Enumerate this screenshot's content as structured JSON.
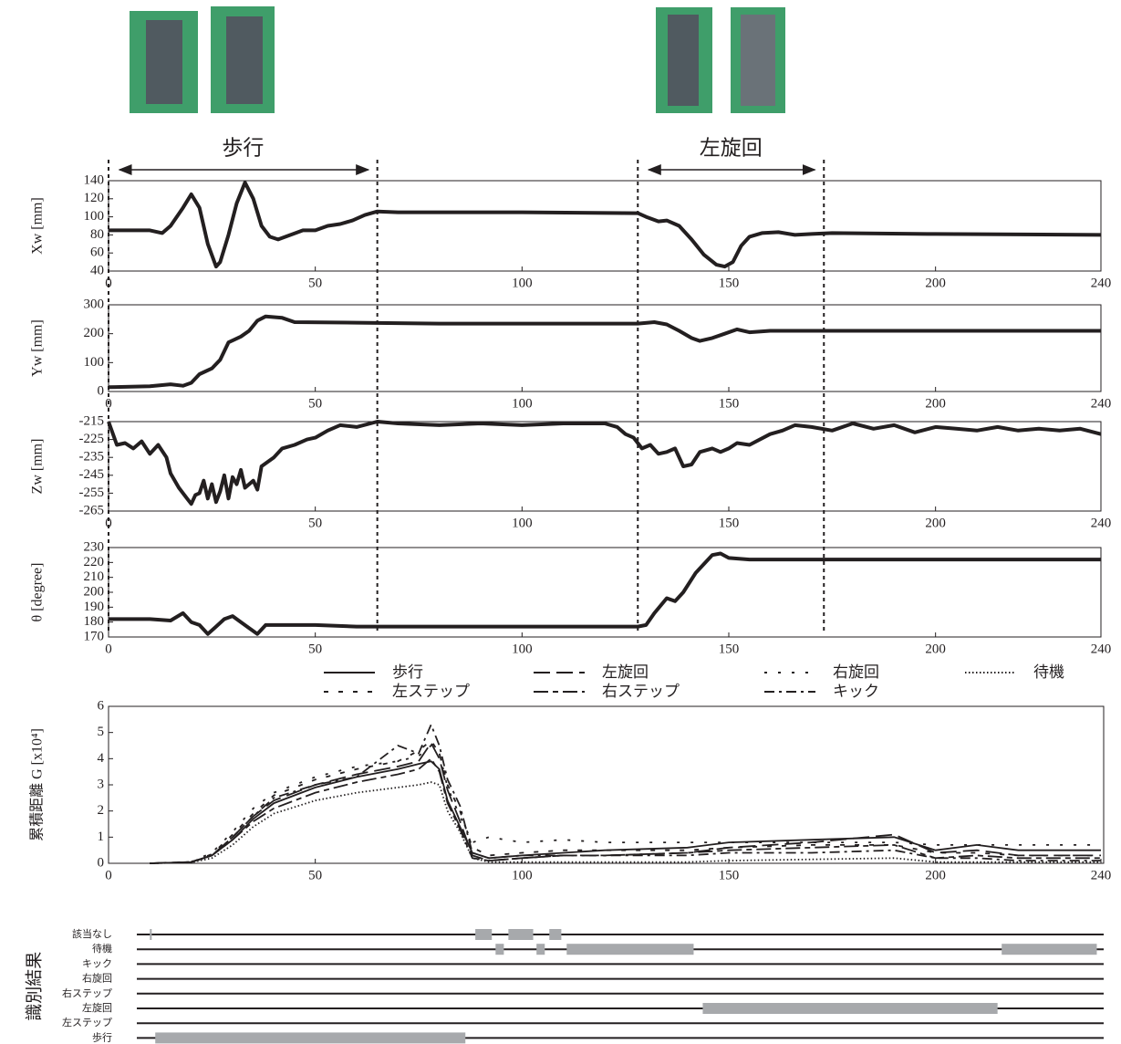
{
  "phases": [
    {
      "label": "歩行",
      "start": 0,
      "end": 65
    },
    {
      "label": "左旋回",
      "start": 128,
      "end": 173
    }
  ],
  "chart_data": [
    {
      "type": "line",
      "y_label": "Xw [mm]",
      "color": "#231f20",
      "xlim": [
        0,
        240
      ],
      "xticks": [
        0,
        50,
        100,
        150,
        200,
        240
      ],
      "ylim": [
        40,
        140
      ],
      "yticks": [
        40,
        60,
        80,
        100,
        120,
        140
      ],
      "x": [
        0,
        5,
        10,
        13,
        15,
        18,
        20,
        22,
        24,
        26,
        27,
        29,
        31,
        33,
        35,
        37,
        39,
        41,
        44,
        47,
        50,
        53,
        56,
        59,
        62,
        65,
        70,
        100,
        128,
        130,
        133,
        135,
        138,
        141,
        144,
        147,
        149,
        151,
        153,
        155,
        158,
        162,
        166,
        170,
        175,
        200,
        240
      ],
      "values": [
        85,
        85,
        85,
        82,
        90,
        110,
        125,
        110,
        70,
        45,
        50,
        80,
        115,
        138,
        120,
        90,
        78,
        75,
        80,
        85,
        85,
        90,
        92,
        96,
        102,
        106,
        105,
        105,
        104,
        100,
        95,
        96,
        90,
        75,
        58,
        47,
        45,
        50,
        68,
        78,
        82,
        83,
        80,
        81,
        82,
        81,
        80
      ]
    },
    {
      "type": "line",
      "y_label": "Yw [mm]",
      "color": "#231f20",
      "xlim": [
        0,
        240
      ],
      "xticks": [
        0,
        50,
        100,
        150,
        200,
        240
      ],
      "ylim": [
        0,
        300
      ],
      "yticks": [
        0,
        100,
        200,
        300
      ],
      "x": [
        0,
        10,
        15,
        18,
        20,
        22,
        25,
        27,
        29,
        32,
        34,
        36,
        38,
        42,
        45,
        60,
        80,
        128,
        132,
        135,
        138,
        141,
        143,
        146,
        149,
        152,
        155,
        160,
        175,
        240
      ],
      "values": [
        15,
        18,
        25,
        20,
        30,
        60,
        80,
        110,
        170,
        190,
        210,
        245,
        260,
        255,
        240,
        238,
        235,
        235,
        240,
        232,
        210,
        185,
        175,
        185,
        200,
        215,
        205,
        210,
        210,
        210
      ]
    },
    {
      "type": "line",
      "y_label": "Zw [mm]",
      "color": "#231f20",
      "xlim": [
        0,
        240
      ],
      "xticks": [
        0,
        50,
        100,
        150,
        200,
        240
      ],
      "ylim": [
        -265,
        -215
      ],
      "yticks": [
        -215,
        -225,
        -235,
        -245,
        -255,
        -265
      ],
      "x": [
        0,
        2,
        4,
        6,
        8,
        10,
        12,
        14,
        15,
        17,
        19,
        20,
        21,
        22,
        23,
        24,
        25,
        26,
        27,
        28,
        29,
        30,
        31,
        32,
        33,
        35,
        36,
        37,
        40,
        42,
        45,
        48,
        50,
        53,
        56,
        60,
        65,
        70,
        80,
        90,
        100,
        110,
        120,
        123,
        125,
        127,
        129,
        131,
        133,
        135,
        137,
        139,
        141,
        143,
        146,
        148,
        150,
        152,
        155,
        160,
        163,
        166,
        170,
        175,
        180,
        185,
        190,
        195,
        200,
        205,
        210,
        215,
        220,
        225,
        230,
        235,
        240
      ],
      "values": [
        -215,
        -228,
        -227,
        -230,
        -226,
        -233,
        -228,
        -235,
        -244,
        -252,
        -258,
        -261,
        -256,
        -255,
        -248,
        -258,
        -250,
        -260,
        -254,
        -245,
        -258,
        -246,
        -250,
        -242,
        -252,
        -248,
        -253,
        -240,
        -235,
        -230,
        -228,
        -225,
        -224,
        -220,
        -217,
        -218,
        -215,
        -216,
        -217,
        -216,
        -217,
        -216,
        -216,
        -218,
        -222,
        -224,
        -230,
        -228,
        -233,
        -232,
        -230,
        -240,
        -239,
        -232,
        -230,
        -232,
        -230,
        -227,
        -228,
        -222,
        -220,
        -217,
        -218,
        -220,
        -216,
        -219,
        -217,
        -221,
        -218,
        -219,
        -220,
        -218,
        -220,
        -219,
        -220,
        -219,
        -222
      ]
    },
    {
      "type": "line",
      "y_label": "θ [degree]",
      "color": "#231f20",
      "xlim": [
        0,
        240
      ],
      "xticks": [
        0,
        50,
        100,
        150,
        200,
        240
      ],
      "ylim": [
        170,
        230
      ],
      "yticks": [
        170,
        180,
        190,
        200,
        210,
        220,
        230
      ],
      "x": [
        0,
        10,
        15,
        18,
        20,
        22,
        24,
        26,
        28,
        30,
        32,
        34,
        36,
        38,
        40,
        50,
        60,
        80,
        128,
        130,
        132,
        135,
        137,
        139,
        142,
        144,
        146,
        148,
        150,
        155,
        240
      ],
      "values": [
        182,
        182,
        181,
        186,
        180,
        178,
        172,
        177,
        182,
        184,
        180,
        176,
        172,
        178,
        178,
        178,
        177,
        177,
        177,
        178,
        186,
        196,
        194,
        200,
        213,
        219,
        225,
        226,
        223,
        222,
        222
      ]
    },
    {
      "type": "multiline",
      "y_label": "累積距離 G [x10⁴]",
      "xlim": [
        0,
        240
      ],
      "xticks": [
        0,
        50,
        100,
        150,
        200,
        240
      ],
      "ylim": [
        0,
        6
      ],
      "yticks": [
        0,
        1,
        2,
        3,
        4,
        5,
        6
      ],
      "x": [
        10,
        20,
        25,
        30,
        35,
        40,
        50,
        60,
        70,
        75,
        78,
        80,
        82,
        85,
        88,
        92,
        100,
        110,
        120,
        140,
        150,
        170,
        190,
        200,
        210,
        220,
        240
      ],
      "series": [
        {
          "name": "歩行",
          "color": "#231f20",
          "line_style": "solid",
          "values": [
            0,
            0.05,
            0.3,
            0.9,
            1.7,
            2.3,
            2.9,
            3.3,
            3.6,
            3.8,
            3.9,
            3.6,
            2.4,
            1.4,
            0.4,
            0.2,
            0.3,
            0.4,
            0.5,
            0.6,
            0.8,
            0.9,
            1.0,
            0.5,
            0.7,
            0.5,
            0.5
          ]
        },
        {
          "name": "左旋回",
          "color": "#231f20",
          "line_style": "long-dash",
          "values": [
            0,
            0.05,
            0.3,
            1.0,
            1.8,
            2.4,
            3.0,
            3.4,
            3.7,
            3.9,
            4.6,
            4.0,
            2.8,
            1.6,
            0.3,
            0.1,
            0.2,
            0.3,
            0.3,
            0.4,
            0.6,
            0.8,
            1.1,
            0.4,
            0.5,
            0.3,
            0.3
          ]
        },
        {
          "name": "右旋回",
          "color": "#231f20",
          "line_style": "sparse-dot",
          "values": [
            0,
            0.06,
            0.4,
            1.2,
            2.1,
            2.7,
            3.3,
            3.7,
            3.9,
            4.1,
            4.5,
            4.2,
            2.9,
            1.8,
            0.8,
            1.0,
            0.8,
            0.9,
            0.8,
            0.8,
            0.8,
            0.8,
            0.8,
            0.7,
            0.7,
            0.7,
            0.7
          ]
        },
        {
          "name": "待機",
          "color": "#231f20",
          "line_style": "dotted",
          "values": [
            0,
            0.03,
            0.2,
            0.7,
            1.4,
            1.9,
            2.4,
            2.7,
            2.9,
            3.0,
            3.1,
            3.0,
            2.0,
            1.2,
            0.2,
            0.05,
            0.05,
            0.05,
            0.05,
            0.05,
            0.1,
            0.15,
            0.2,
            0.05,
            0.05,
            0.05,
            0.05
          ]
        },
        {
          "name": "左ステップ",
          "color": "#231f20",
          "line_style": "short-dash",
          "values": [
            0,
            0.05,
            0.35,
            1.1,
            1.9,
            2.6,
            3.2,
            3.6,
            3.9,
            4.3,
            4.7,
            4.2,
            3.0,
            2.0,
            0.6,
            0.3,
            0.4,
            0.5,
            0.5,
            0.5,
            0.6,
            0.7,
            0.7,
            0.4,
            0.4,
            0.3,
            0.3
          ]
        },
        {
          "name": "右ステップ",
          "color": "#231f20",
          "line_style": "long-short-dash",
          "values": [
            0,
            0.04,
            0.3,
            0.9,
            1.6,
            2.1,
            2.7,
            3.1,
            3.4,
            3.6,
            4.0,
            3.5,
            2.3,
            1.3,
            0.2,
            0.1,
            0.2,
            0.3,
            0.3,
            0.4,
            0.5,
            0.6,
            0.7,
            0.2,
            0.3,
            0.2,
            0.2
          ]
        },
        {
          "name": "キック",
          "color": "#231f20",
          "line_style": "dash-dot",
          "values": [
            0,
            0.05,
            0.3,
            1.0,
            1.8,
            2.5,
            3.0,
            3.3,
            4.5,
            4.2,
            5.3,
            4.5,
            3.2,
            2.2,
            0.4,
            0.2,
            0.3,
            0.3,
            0.3,
            0.3,
            0.4,
            0.4,
            0.5,
            0.2,
            0.2,
            0.1,
            0.1
          ]
        }
      ]
    },
    {
      "type": "timeline",
      "title": "識別結果",
      "xlim": [
        0,
        240
      ],
      "bar_color": "#a7a9ac",
      "categories": [
        "該当なし",
        "待機",
        "キック",
        "右旋回",
        "右ステップ",
        "左旋回",
        "左ステップ",
        "歩行"
      ],
      "segments": [
        [
          [
            10,
            10.3
          ],
          [
            88.7,
            92.7
          ],
          [
            96.7,
            102.7
          ],
          [
            106.6,
            109.5
          ]
        ],
        [
          [
            93.6,
            95.6
          ],
          [
            103.5,
            105.5
          ],
          [
            110.8,
            141.5
          ],
          [
            216,
            239
          ]
        ],
        [],
        [],
        [],
        [
          [
            143.7,
            215
          ]
        ],
        [],
        [
          [
            11.3,
            86.3
          ]
        ]
      ]
    }
  ]
}
